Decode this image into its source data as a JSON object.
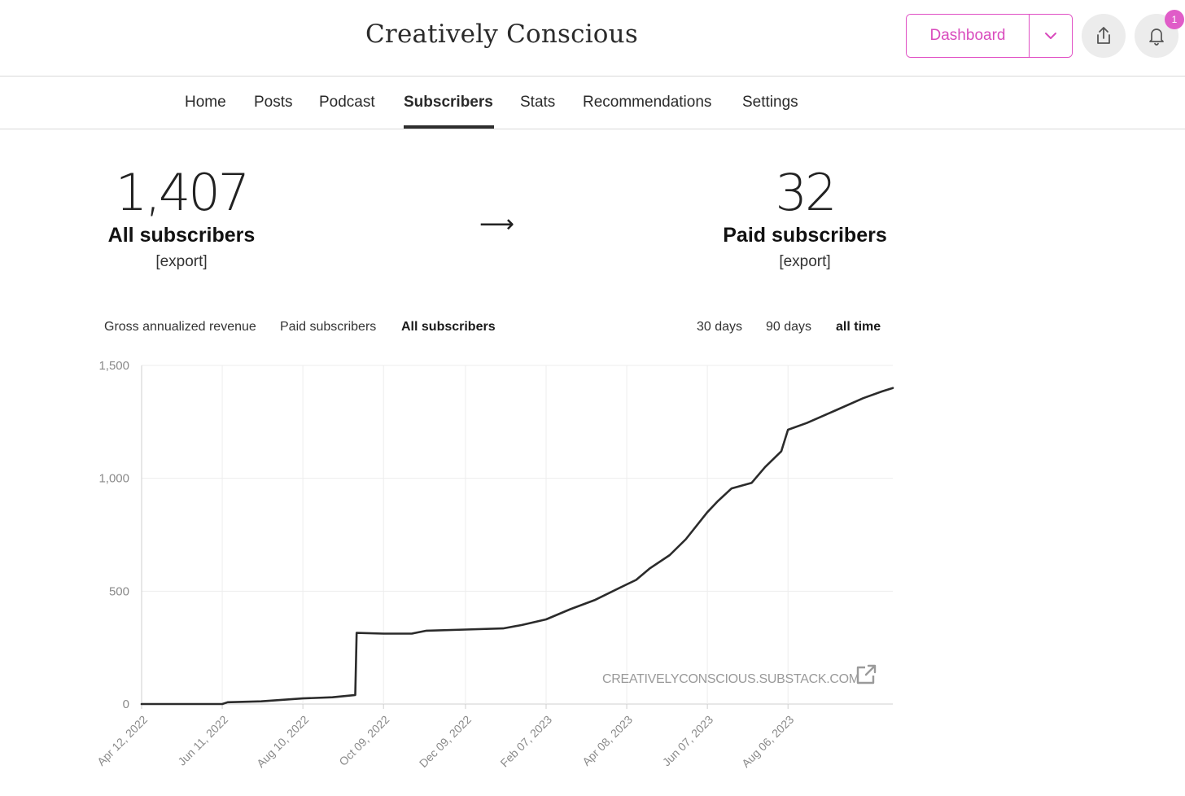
{
  "header": {
    "site_title": "Creatively Conscious",
    "dashboard_label": "Dashboard",
    "notification_count": "1",
    "accent_color": "#e04fc4"
  },
  "nav": {
    "items": [
      {
        "label": "Home"
      },
      {
        "label": "Posts"
      },
      {
        "label": "Podcast"
      },
      {
        "label": "Subscribers",
        "active": true
      },
      {
        "label": "Stats"
      },
      {
        "label": "Recommendations"
      },
      {
        "label": "Settings"
      }
    ]
  },
  "stats": {
    "all_count": "1,407",
    "all_label": "All subscribers",
    "all_export": "[export]",
    "arrow": "⟶",
    "paid_count": "32",
    "paid_label": "Paid subscribers",
    "paid_export": "[export]"
  },
  "metric_tabs": [
    {
      "label": "Gross annualized revenue"
    },
    {
      "label": "Paid subscribers"
    },
    {
      "label": "All subscribers",
      "active": true
    }
  ],
  "range_tabs": [
    {
      "label": "30 days"
    },
    {
      "label": "90 days"
    },
    {
      "label": "all time",
      "active": true
    }
  ],
  "watermark": "CREATIVELYCONSCIOUS.SUBSTACK.COM",
  "chart_data": {
    "type": "line",
    "title": "",
    "xlabel": "",
    "ylabel": "",
    "ylim": [
      0,
      1500
    ],
    "yticks": [
      0,
      500,
      1000,
      1500
    ],
    "ytick_labels": [
      "0",
      "500",
      "1,000",
      "1,500"
    ],
    "xlim": [
      "2022-04-12",
      "2023-10-23"
    ],
    "xticks": [
      "2022-04-12",
      "2022-06-11",
      "2022-08-10",
      "2022-10-09",
      "2022-12-09",
      "2023-02-07",
      "2023-04-08",
      "2023-06-07",
      "2023-08-06"
    ],
    "xtick_labels": [
      "Apr 12, 2022",
      "Jun 11, 2022",
      "Aug 10, 2022",
      "Oct 09, 2022",
      "Dec 09, 2022",
      "Feb 07, 2023",
      "Apr 08, 2023",
      "Jun 07, 2023",
      "Aug 06, 2023"
    ],
    "grid": true,
    "line_color": "#2b2b2b",
    "series": [
      {
        "points": [
          [
            "2022-04-12",
            0
          ],
          [
            "2022-05-20",
            0
          ],
          [
            "2022-06-11",
            0
          ],
          [
            "2022-06-15",
            8
          ],
          [
            "2022-07-10",
            12
          ],
          [
            "2022-08-10",
            25
          ],
          [
            "2022-09-01",
            30
          ],
          [
            "2022-09-18",
            40
          ],
          [
            "2022-09-19",
            315
          ],
          [
            "2022-10-09",
            312
          ],
          [
            "2022-10-30",
            312
          ],
          [
            "2022-11-10",
            325
          ],
          [
            "2022-12-09",
            330
          ],
          [
            "2023-01-06",
            335
          ],
          [
            "2023-01-20",
            350
          ],
          [
            "2023-02-07",
            375
          ],
          [
            "2023-02-25",
            420
          ],
          [
            "2023-03-15",
            460
          ],
          [
            "2023-04-08",
            530
          ],
          [
            "2023-04-15",
            550
          ],
          [
            "2023-04-25",
            600
          ],
          [
            "2023-05-10",
            660
          ],
          [
            "2023-05-22",
            730
          ],
          [
            "2023-06-07",
            850
          ],
          [
            "2023-06-15",
            900
          ],
          [
            "2023-06-25",
            955
          ],
          [
            "2023-07-10",
            980
          ],
          [
            "2023-07-20",
            1050
          ],
          [
            "2023-08-01",
            1120
          ],
          [
            "2023-08-06",
            1215
          ],
          [
            "2023-08-20",
            1245
          ],
          [
            "2023-09-10",
            1300
          ],
          [
            "2023-10-01",
            1355
          ],
          [
            "2023-10-15",
            1385
          ],
          [
            "2023-10-23",
            1400
          ]
        ]
      }
    ]
  }
}
